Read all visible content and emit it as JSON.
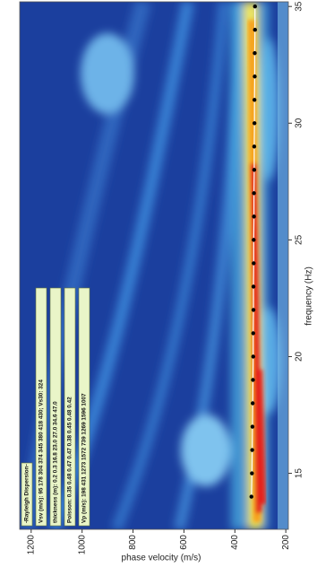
{
  "chart_data": {
    "type": "scatter",
    "x_label": "frequency (Hz)",
    "y_label": "phase velocity (m/s)",
    "xlim": [
      12.6,
      35.2
    ],
    "xticks": [
      15,
      20,
      25,
      30,
      35
    ],
    "ylim": [
      190,
      1245
    ],
    "yticks": [
      200,
      400,
      600,
      800,
      1000,
      1200
    ],
    "legend_lines": [
      "-Rayleigh Dispersion-",
      "Vsv (m/s): 95  178  304  374  345  380  418  430;  Vs30: 324",
      "thickness (m): 0.2  0.3  16.8  23.0  27.0  34.6  47.0",
      "Poisson: 0.35  0.48  0.47  0.47  0.38  0.45  0.48  0.42",
      "Vp (m/s): 198  431  1273  1572  739  1269  1596  1007"
    ],
    "series": [
      {
        "color": "#000000",
        "line_color": "#ffffff",
        "x": [
          14,
          15,
          16,
          17,
          18,
          19,
          20,
          21,
          22,
          23,
          24,
          25,
          26,
          27,
          28,
          29,
          30,
          31,
          32,
          33,
          34,
          35
        ],
        "values": [
          335,
          333,
          332,
          331,
          330,
          329,
          328,
          328,
          327,
          327,
          326,
          326,
          325,
          325,
          324,
          324,
          323,
          323,
          322,
          322,
          321,
          321
        ]
      }
    ]
  }
}
